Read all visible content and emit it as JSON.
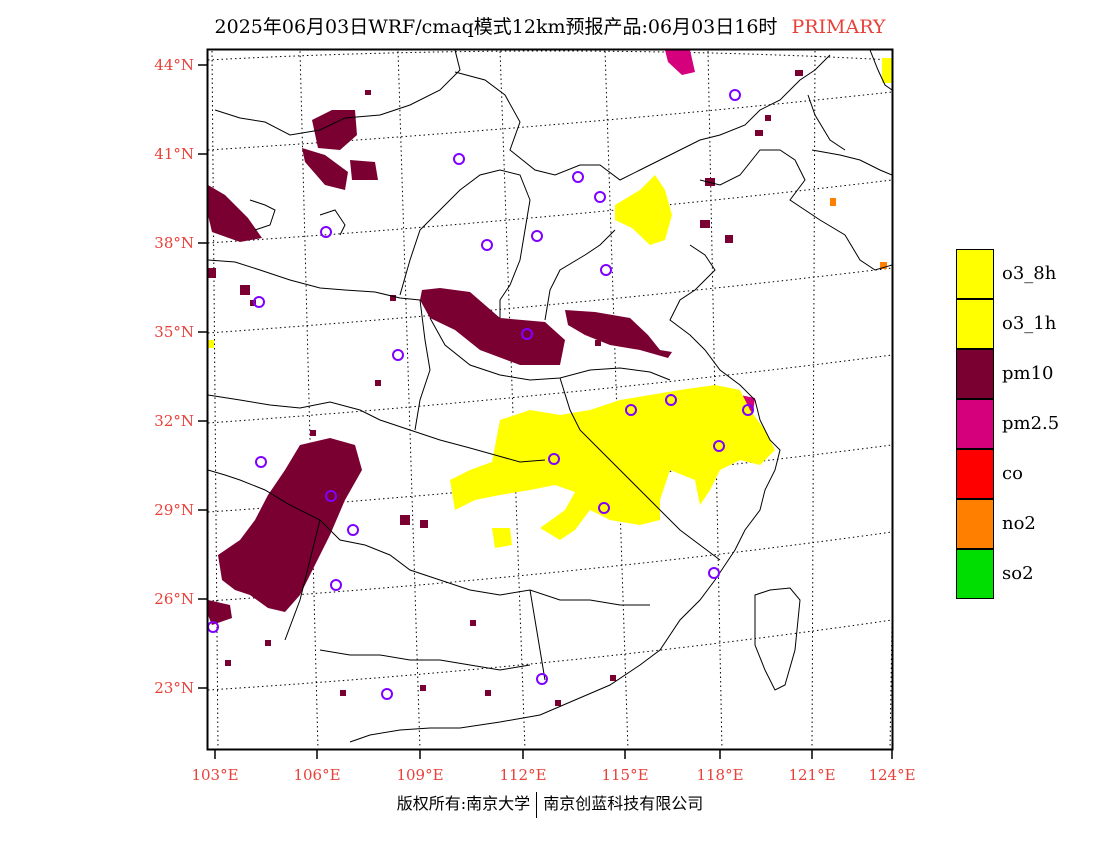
{
  "title": {
    "text": "2025年06月03日WRF/cmaq模式12km预报产品:06月03日16时",
    "tag": "PRIMARY",
    "tag_color": "#e8413a"
  },
  "axes": {
    "lat_labels": [
      "44°N",
      "41°N",
      "38°N",
      "35°N",
      "32°N",
      "29°N",
      "26°N",
      "23°N"
    ],
    "lon_labels": [
      "103°E",
      "106°E",
      "109°E",
      "112°E",
      "115°E",
      "118°E",
      "121°E",
      "124°E"
    ],
    "label_color": "#e8413a"
  },
  "legend": [
    {
      "label": "o3_8h",
      "color": "#ffff00"
    },
    {
      "label": "o3_1h",
      "color": "#ffff00"
    },
    {
      "label": "pm10",
      "color": "#7b0032"
    },
    {
      "label": "pm2.5",
      "color": "#d4007c"
    },
    {
      "label": "co",
      "color": "#ff0000"
    },
    {
      "label": "no2",
      "color": "#ff8000"
    },
    {
      "label": "so2",
      "color": "#00dd00"
    }
  ],
  "footer": {
    "left": "版权所有:南京大学",
    "right": "南京创蓝科技有限公司"
  }
}
